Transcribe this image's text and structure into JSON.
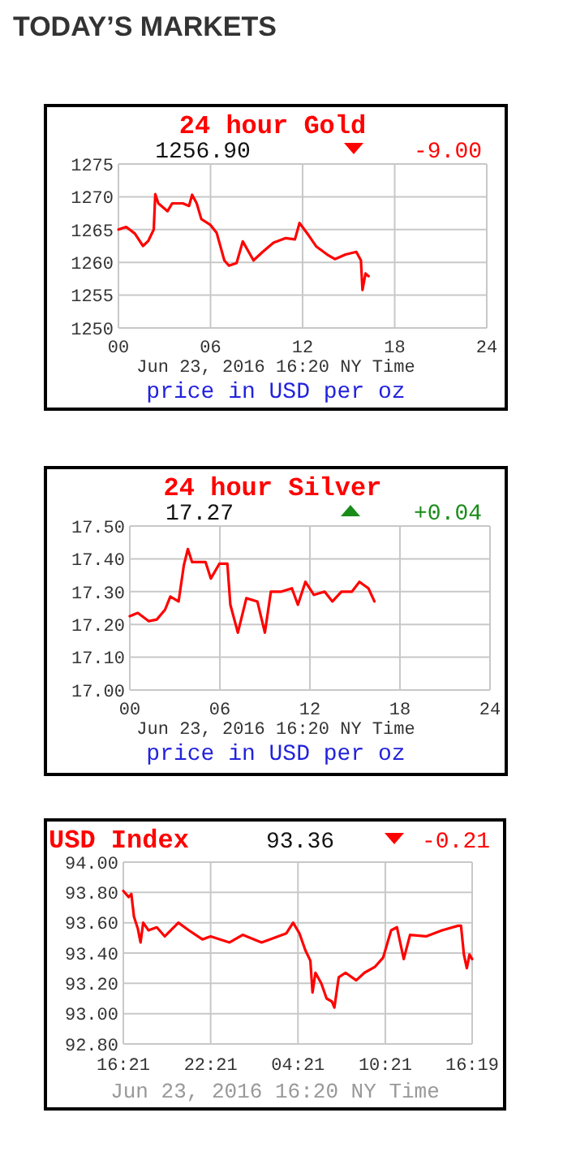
{
  "chart_data": [
    {
      "type": "other",
      "title": "TODAY’S MARKETS"
    },
    {
      "type": "line",
      "title": "24 hour Gold",
      "subtitle": "1256.90",
      "annotations": [
        "-9.00",
        "price in USD per oz"
      ],
      "xlabel": "Jun 23, 2016 16:20 NY Time",
      "xlim": [
        "2016-06-23T00:00",
        "2016-06-24T00:00"
      ],
      "xticks": [
        {
          "value": "2016-06-23T00:00",
          "label": "00"
        },
        {
          "value": "2016-06-23T06:00",
          "label": "06"
        },
        {
          "value": "2016-06-23T12:00",
          "label": "12"
        },
        {
          "value": "2016-06-23T18:00",
          "label": "18"
        },
        {
          "value": "2016-06-24T00:00",
          "label": "24"
        }
      ],
      "ylim": [
        1250,
        1275
      ],
      "yticks": [
        1250,
        1255,
        1260,
        1265,
        1270,
        1275
      ],
      "grid": true,
      "series": [
        {
          "color": "#ff0000",
          "x": [
            "2016-06-23T00:00",
            "2016-06-23T00:30",
            "2016-06-23T01:04",
            "2016-06-23T01:36",
            "2016-06-23T01:57",
            "2016-06-23T02:18",
            "2016-06-23T02:24",
            "2016-06-23T02:36",
            "2016-06-23T03:12",
            "2016-06-23T03:30",
            "2016-06-23T04:12",
            "2016-06-23T04:36",
            "2016-06-23T04:48",
            "2016-06-23T05:06",
            "2016-06-23T05:24",
            "2016-06-23T06:00",
            "2016-06-23T06:24",
            "2016-06-23T06:54",
            "2016-06-23T07:12",
            "2016-06-23T07:42",
            "2016-06-23T08:06",
            "2016-06-23T08:48",
            "2016-06-23T09:24",
            "2016-06-23T10:06",
            "2016-06-23T10:54",
            "2016-06-23T11:30",
            "2016-06-23T11:48",
            "2016-06-23T12:24",
            "2016-06-23T12:54",
            "2016-06-23T13:36",
            "2016-06-23T14:06",
            "2016-06-23T14:48",
            "2016-06-23T15:30",
            "2016-06-23T15:48",
            "2016-06-23T15:54",
            "2016-06-23T16:06",
            "2016-06-23T16:18"
          ],
          "values": [
            1265.0,
            1265.4,
            1264.4,
            1262.5,
            1263.3,
            1265.0,
            1270.4,
            1269.0,
            1267.8,
            1269.0,
            1269.0,
            1268.6,
            1270.3,
            1269.0,
            1266.6,
            1265.7,
            1264.5,
            1260.3,
            1259.5,
            1259.9,
            1263.2,
            1260.3,
            1261.6,
            1263.0,
            1263.7,
            1263.5,
            1266.0,
            1264.1,
            1262.4,
            1261.2,
            1260.5,
            1261.2,
            1261.6,
            1260.3,
            1255.8,
            1258.3,
            1257.9
          ]
        }
      ]
    },
    {
      "type": "line",
      "title": "24 hour Silver",
      "subtitle": "17.27",
      "annotations": [
        "+0.04",
        "price in USD per oz"
      ],
      "xlabel": "Jun 23, 2016 16:20 NY Time",
      "xlim": [
        "2016-06-23T00:00",
        "2016-06-24T00:00"
      ],
      "xticks": [
        {
          "value": "2016-06-23T00:00",
          "label": "00"
        },
        {
          "value": "2016-06-23T06:00",
          "label": "06"
        },
        {
          "value": "2016-06-23T12:00",
          "label": "12"
        },
        {
          "value": "2016-06-23T18:00",
          "label": "18"
        },
        {
          "value": "2016-06-24T00:00",
          "label": "24"
        }
      ],
      "ylim": [
        17.0,
        17.5
      ],
      "yticks": [
        {
          "value": 17.0,
          "label": "17.00"
        },
        {
          "value": 17.1,
          "label": "17.10"
        },
        {
          "value": 17.2,
          "label": "17.20"
        },
        {
          "value": 17.3,
          "label": "17.30"
        },
        {
          "value": 17.4,
          "label": "17.40"
        },
        {
          "value": 17.5,
          "label": "17.50"
        }
      ],
      "grid": true,
      "series": [
        {
          "color": "#ff0000",
          "x": [
            "2016-06-23T00:00",
            "2016-06-23T00:32",
            "2016-06-23T01:16",
            "2016-06-23T01:48",
            "2016-06-23T02:21",
            "2016-06-23T02:42",
            "2016-06-23T03:15",
            "2016-06-23T03:36",
            "2016-06-23T03:52",
            "2016-06-23T04:09",
            "2016-06-23T05:03",
            "2016-06-23T05:24",
            "2016-06-23T05:58",
            "2016-06-23T06:30",
            "2016-06-23T06:42",
            "2016-06-23T07:12",
            "2016-06-23T07:46",
            "2016-06-23T08:30",
            "2016-06-23T09:00",
            "2016-06-23T09:24",
            "2016-06-23T10:06",
            "2016-06-23T10:48",
            "2016-06-23T11:12",
            "2016-06-23T11:42",
            "2016-06-23T12:16",
            "2016-06-23T12:59",
            "2016-06-23T13:30",
            "2016-06-23T14:06",
            "2016-06-23T14:48",
            "2016-06-23T15:18",
            "2016-06-23T15:54",
            "2016-06-23T16:18"
          ],
          "values": [
            17.225,
            17.235,
            17.21,
            17.215,
            17.245,
            17.285,
            17.27,
            17.38,
            17.43,
            17.39,
            17.39,
            17.34,
            17.385,
            17.385,
            17.26,
            17.175,
            17.28,
            17.27,
            17.175,
            17.3,
            17.3,
            17.31,
            17.26,
            17.33,
            17.29,
            17.3,
            17.27,
            17.3,
            17.3,
            17.33,
            17.31,
            17.27
          ]
        }
      ]
    },
    {
      "type": "line",
      "title": "USD Index",
      "subtitle": "93.36",
      "annotations": [
        "-0.21"
      ],
      "xlabel": "Jun 23, 2016 16:20 NY Time",
      "xlim": [
        "2016-06-22T16:21",
        "2016-06-23T16:19"
      ],
      "xticks": [
        {
          "value": "2016-06-22T16:21",
          "label": "16:21"
        },
        {
          "value": "2016-06-22T22:21",
          "label": "22:21"
        },
        {
          "value": "2016-06-23T04:21",
          "label": "04:21"
        },
        {
          "value": "2016-06-23T10:21",
          "label": "10:21"
        },
        {
          "value": "2016-06-23T16:19",
          "label": "16:19"
        }
      ],
      "ylim": [
        92.8,
        94.0
      ],
      "yticks": [
        {
          "value": 92.8,
          "label": "92.80"
        },
        {
          "value": 93.0,
          "label": "93.00"
        },
        {
          "value": 93.2,
          "label": "93.20"
        },
        {
          "value": 93.4,
          "label": "93.40"
        },
        {
          "value": 93.6,
          "label": "93.60"
        },
        {
          "value": 93.8,
          "label": "93.80"
        },
        {
          "value": 94.0,
          "label": "94.00"
        }
      ],
      "grid": true,
      "series": [
        {
          "color": "#ff0000",
          "x": [
            "2016-06-22T16:21",
            "2016-06-22T16:43",
            "2016-06-22T16:54",
            "2016-06-22T17:05",
            "2016-06-22T17:21",
            "2016-06-22T17:32",
            "2016-06-22T17:43",
            "2016-06-22T18:05",
            "2016-06-22T18:39",
            "2016-06-22T19:12",
            "2016-06-22T20:08",
            "2016-06-22T20:51",
            "2016-06-22T21:47",
            "2016-06-22T22:21",
            "2016-06-22T23:39",
            "2016-06-23T00:33",
            "2016-06-23T01:51",
            "2016-06-23T02:25",
            "2016-06-23T03:33",
            "2016-06-23T04:01",
            "2016-06-23T04:27",
            "2016-06-23T04:51",
            "2016-06-23T05:12",
            "2016-06-23T05:21",
            "2016-06-23T05:33",
            "2016-06-23T05:57",
            "2016-06-23T06:19",
            "2016-06-23T06:41",
            "2016-06-23T06:51",
            "2016-06-23T07:09",
            "2016-06-23T07:37",
            "2016-06-23T08:21",
            "2016-06-23T08:55",
            "2016-06-23T09:39",
            "2016-06-23T10:12",
            "2016-06-23T10:45",
            "2016-06-23T11:09",
            "2016-06-23T11:37",
            "2016-06-23T12:03",
            "2016-06-23T13:09",
            "2016-06-23T14:15",
            "2016-06-23T15:21",
            "2016-06-23T15:33",
            "2016-06-23T15:45",
            "2016-06-23T15:57",
            "2016-06-23T16:08",
            "2016-06-23T16:19"
          ],
          "values": [
            93.81,
            93.77,
            93.79,
            93.64,
            93.56,
            93.47,
            93.6,
            93.55,
            93.57,
            93.51,
            93.6,
            93.55,
            93.49,
            93.51,
            93.47,
            93.52,
            93.47,
            93.49,
            93.53,
            93.6,
            93.53,
            93.42,
            93.35,
            93.14,
            93.27,
            93.2,
            93.1,
            93.08,
            93.04,
            93.24,
            93.27,
            93.22,
            93.27,
            93.31,
            93.37,
            93.55,
            93.57,
            93.36,
            93.52,
            93.51,
            93.55,
            93.58,
            93.58,
            93.39,
            93.3,
            93.39,
            93.36
          ]
        }
      ]
    }
  ]
}
